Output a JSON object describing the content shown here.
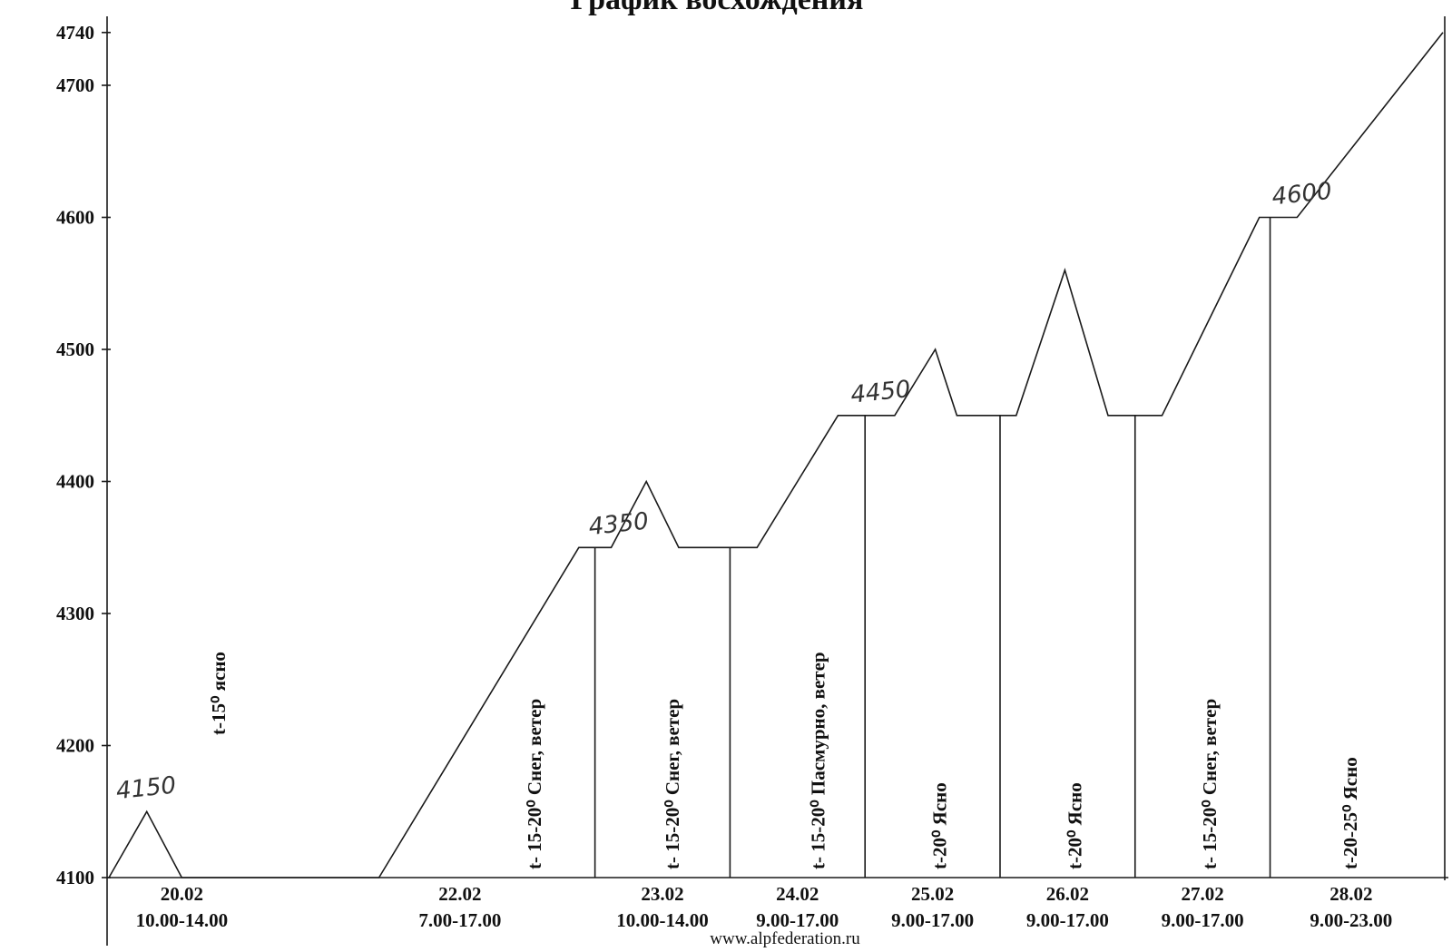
{
  "chart_data": {
    "type": "line",
    "title": "График восхождения",
    "ylim": [
      4100,
      4740
    ],
    "y_ticks": [
      4100,
      4200,
      4300,
      4400,
      4500,
      4600,
      4700,
      4740
    ],
    "days": [
      {
        "date": "20.02",
        "time": "10.00-14.00",
        "weather": "t-15⁰ ясно"
      },
      {
        "date": "22.02",
        "time": "7.00-17.00",
        "weather": "t- 15-20⁰ Снег, ветер"
      },
      {
        "date": "23.02",
        "time": "10.00-14.00",
        "weather": "t- 15-20⁰ Снег, ветер"
      },
      {
        "date": "24.02",
        "time": "9.00-17.00",
        "weather": "t- 15-20⁰ Пасмурно, ветер"
      },
      {
        "date": "25.02",
        "time": "9.00-17.00",
        "weather": "t-20⁰ Ясно"
      },
      {
        "date": "26.02",
        "time": "9.00-17.00",
        "weather": "t-20⁰ Ясно"
      },
      {
        "date": "27.02",
        "time": "9.00-17.00",
        "weather": "t- 15-20⁰ Снег, ветер"
      },
      {
        "date": "28.02",
        "time": "9.00-23.00",
        "weather": "t-20-25⁰ Ясно"
      }
    ],
    "profile": [
      [
        0.0,
        4100
      ],
      [
        1.4,
        4150
      ],
      [
        2.7,
        4100
      ],
      [
        10.0,
        4100
      ],
      [
        17.4,
        4350
      ],
      [
        18.0,
        4350
      ],
      [
        18.6,
        4350
      ],
      [
        19.9,
        4400
      ],
      [
        21.1,
        4350
      ],
      [
        22.6,
        4350
      ],
      [
        24.0,
        4350
      ],
      [
        27.0,
        4450
      ],
      [
        28.0,
        4450
      ],
      [
        29.1,
        4450
      ],
      [
        30.6,
        4500
      ],
      [
        31.4,
        4450
      ],
      [
        33.0,
        4450
      ],
      [
        33.6,
        4450
      ],
      [
        35.4,
        4560
      ],
      [
        37.0,
        4450
      ],
      [
        38.0,
        4450
      ],
      [
        39.0,
        4450
      ],
      [
        42.6,
        4600
      ],
      [
        43.0,
        4600
      ],
      [
        44.0,
        4600
      ],
      [
        49.4,
        4740
      ]
    ],
    "day_boundaries": [
      18.0,
      23.0,
      28.0,
      33.0,
      38.0,
      43.0
    ],
    "peak_labels": [
      {
        "text": "4150",
        "x": 0.3,
        "y": 4150
      },
      {
        "text": "4350",
        "x": 17.8,
        "y": 4350
      },
      {
        "text": "4450",
        "x": 27.5,
        "y": 4450
      },
      {
        "text": "4600",
        "x": 43.1,
        "y": 4600
      }
    ]
  },
  "footer": {
    "text": "www.alpfederation.ru"
  }
}
